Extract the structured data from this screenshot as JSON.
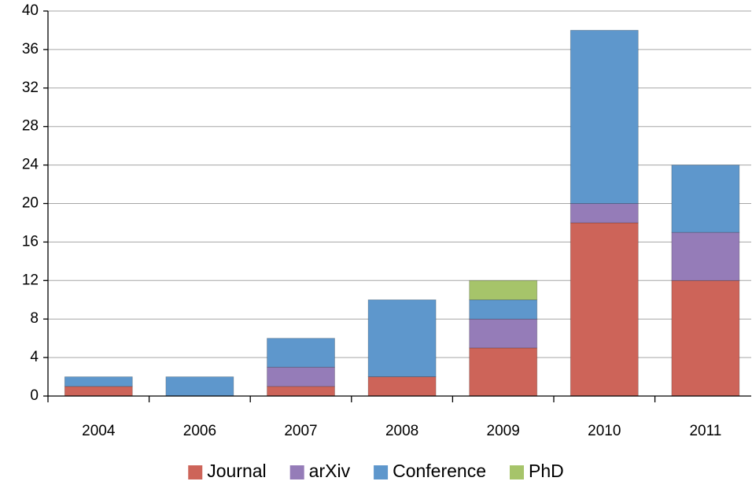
{
  "chart_data": {
    "type": "stacked_bar",
    "categories": [
      "2004",
      "2006",
      "2007",
      "2008",
      "2009",
      "2010",
      "2011"
    ],
    "series": [
      {
        "name": "Journal",
        "color": "#cd6459",
        "values": [
          1,
          0,
          1,
          2,
          5,
          18,
          12
        ]
      },
      {
        "name": "arXiv",
        "color": "#957cb8",
        "values": [
          0,
          0,
          2,
          0,
          3,
          2,
          5
        ]
      },
      {
        "name": "Conference",
        "color": "#5e97cc",
        "values": [
          1,
          2,
          3,
          8,
          2,
          18,
          7
        ]
      },
      {
        "name": "PhD",
        "color": "#a6c46a",
        "values": [
          0,
          0,
          0,
          0,
          2,
          0,
          0
        ]
      }
    ],
    "ylim": [
      0,
      40
    ],
    "yticks": [
      0,
      4,
      8,
      12,
      16,
      20,
      24,
      28,
      32,
      36,
      40
    ],
    "grid": true,
    "legend": "bottom"
  }
}
